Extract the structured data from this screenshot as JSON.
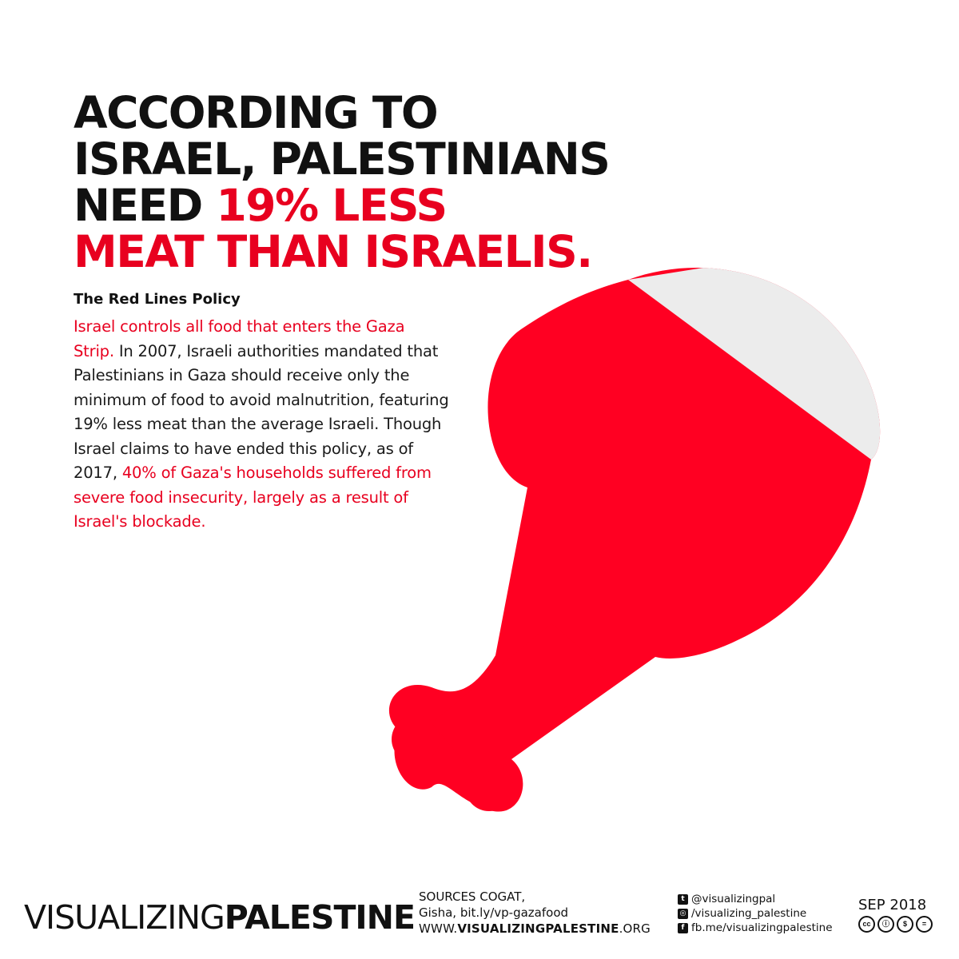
{
  "headline": {
    "line1": "ACCORDING TO",
    "line2": "ISRAEL, PALESTINIANS",
    "line3_black": "NEED ",
    "line3_red": "19% LESS",
    "line4_red": "MEAT THAN ISRAELIS."
  },
  "subhead": "The Red Lines Policy",
  "body": {
    "red1": "Israel controls all food that enters the Gaza Strip.",
    "black1": " In 2007, Israeli authorities mandated that Palestinians in Gaza should receive only the minimum of food to avoid malnutrition, featuring 19% less meat than the average Israeli. Though Israel claims to have ended this policy, as of 2017, ",
    "red2": "40% of Gaza's households suffered from severe food insecurity, largely as a result of Israel's blockade."
  },
  "illustration": {
    "meat_share": 0.81,
    "colors": {
      "meat": "#ff0022",
      "bone": "#ececec",
      "accent": "#e8001f"
    }
  },
  "footer": {
    "logo_light": "VISUALIZING",
    "logo_bold": "PALESTINE",
    "sources_line1": "SOURCES COGAT,",
    "sources_line2": "Gisha, bit.ly/vp-gazafood",
    "site_prefix": "WWW.",
    "site_bold": "VISUALIZINGPALESTINE",
    "site_suffix": ".ORG",
    "twitter": "@visualizingpal",
    "instagram": "/visualizing_palestine",
    "facebook": "fb.me/visualizingpalestine",
    "date": "SEP 2018",
    "cc_icons": [
      "cc",
      "by",
      "nc",
      "nd"
    ]
  }
}
